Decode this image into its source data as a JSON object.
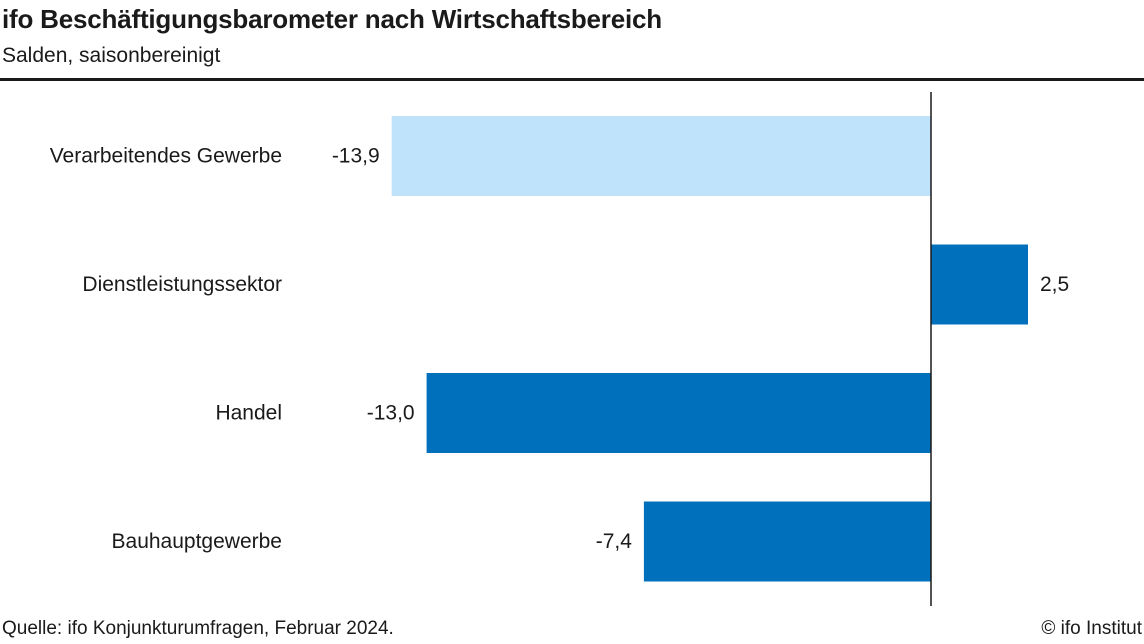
{
  "header": {
    "title": "ifo Beschäftigungsbarometer nach Wirtschaftsbereich",
    "subtitle": "Salden, saisonbereinigt"
  },
  "footer": {
    "source": "Quelle: ifo Konjunkturumfragen, Februar 2024.",
    "copyright": "© ifo Institut"
  },
  "colors": {
    "highlight": "#bfe3fa",
    "bar": "#0070bc",
    "axis": "#1a1a1a"
  },
  "chart_data": {
    "type": "bar",
    "orientation": "horizontal",
    "title": "ifo Beschäftigungsbarometer nach Wirtschaftsbereich",
    "subtitle": "Salden, saisonbereinigt",
    "categories": [
      "Verarbeitendes Gewerbe",
      "Dienstleistungssektor",
      "Handel",
      "Bauhauptgewerbe"
    ],
    "values": [
      -13.9,
      2.5,
      -13.0,
      -7.4
    ],
    "value_labels": [
      "-13,9",
      "2,5",
      "-13,0",
      "-7,4"
    ],
    "bar_colors": [
      "#bfe3fa",
      "#0070bc",
      "#0070bc",
      "#0070bc"
    ],
    "xlim": [
      -14.0,
      5.5
    ],
    "grid": false,
    "legend": "none"
  }
}
